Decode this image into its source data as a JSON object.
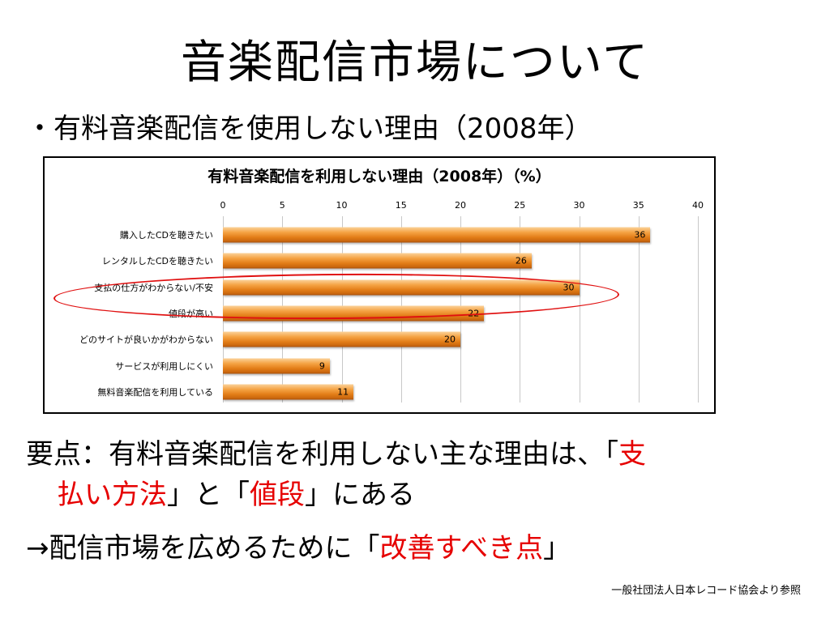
{
  "slide": {
    "title": "音楽配信市場について",
    "bullet": "・有料音楽配信を使用しない理由（2008年）",
    "summary1": {
      "prefix": "要点：有料音楽配信を利用しない主な理由は、「",
      "red1a": "支",
      "red1b": "払い方法",
      "mid": "」と「",
      "red2": "値段",
      "suffix": "」にある"
    },
    "summary2": {
      "prefix": "→配信市場を広めるために「",
      "red": "改善すべき点",
      "suffix": "」"
    },
    "source": "一般社団法人日本レコード協会より参照",
    "accent_red": "#e60000"
  },
  "chart_data": {
    "type": "bar",
    "orientation": "horizontal",
    "title": "有料音楽配信を利用しない理由（2008年）（%）",
    "categories": [
      "購入したCDを聴きたい",
      "レンタルしたCDを聴きたい",
      "支払の仕方がわからない/不安",
      "値段が高い",
      "どのサイトが良いかがわからない",
      "サービスが利用しにくい",
      "無料音楽配信を利用している"
    ],
    "values": [
      36,
      26,
      30,
      22,
      20,
      9,
      11
    ],
    "xlim": [
      0,
      40
    ],
    "xticks": [
      "0",
      "5",
      "10",
      "15",
      "20",
      "25",
      "30",
      "35",
      "40"
    ],
    "grid": true,
    "highlighted_categories": [
      "支払の仕方がわからない/不安",
      "値段が高い"
    ],
    "bar_color": "#e8891f"
  }
}
